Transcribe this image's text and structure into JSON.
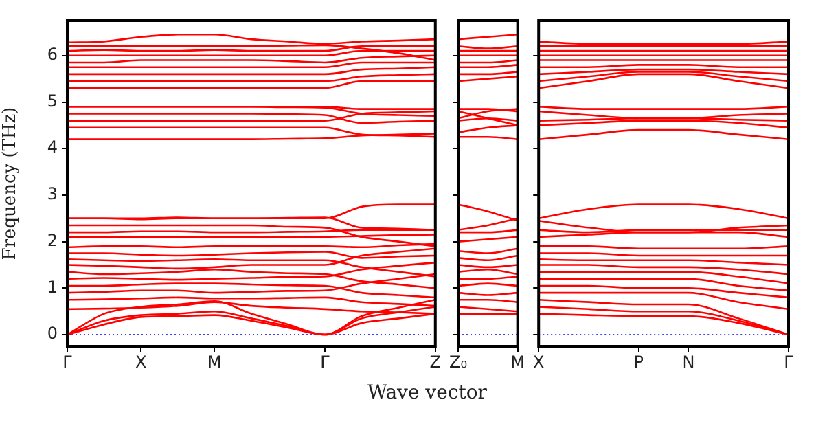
{
  "chart_data": [
    {
      "type": "line",
      "color": "#ff0000",
      "ylabel": "Frequency (THz)",
      "categories": [
        "Γ",
        null,
        "X",
        null,
        "M",
        null,
        null,
        "Γ",
        null,
        null,
        "Z"
      ],
      "ylim": [
        -0.25,
        6.75
      ],
      "yticks": [
        0,
        1,
        2,
        3,
        4,
        5,
        6
      ],
      "ref_lines": [
        {
          "axis": "y",
          "value": 0,
          "color": "#0000ff",
          "line_style": "dotted"
        }
      ],
      "series": [
        {
          "values": [
            0,
            0.22,
            0.38,
            0.4,
            0.42,
            0.3,
            0.15,
            0,
            0.25,
            0.35,
            0.45
          ]
        },
        {
          "values": [
            0,
            0.3,
            0.42,
            0.45,
            0.5,
            0.35,
            0.18,
            0,
            0.35,
            0.48,
            0.6
          ]
        },
        {
          "values": [
            0,
            0.45,
            0.6,
            0.65,
            0.72,
            0.45,
            0.22,
            0,
            0.4,
            0.58,
            0.75
          ]
        },
        {
          "values": [
            0.55,
            0.56,
            0.58,
            0.62,
            0.7,
            0.62,
            0.58,
            0.55,
            0.5,
            0.48,
            0.45
          ]
        },
        {
          "values": [
            0.75,
            0.76,
            0.78,
            0.8,
            0.78,
            0.78,
            0.79,
            0.8,
            0.7,
            0.66,
            0.62
          ]
        },
        {
          "values": [
            0.9,
            0.92,
            0.95,
            0.95,
            0.9,
            0.92,
            0.94,
            0.95,
            1.1,
            1.2,
            1.3
          ]
        },
        {
          "values": [
            1.05,
            1.05,
            1.08,
            1.1,
            1.1,
            1.08,
            1.06,
            1.05,
            0.9,
            0.85,
            0.8
          ]
        },
        {
          "values": [
            1.2,
            1.22,
            1.2,
            1.18,
            1.2,
            1.22,
            1.24,
            1.25,
            1.4,
            1.48,
            1.55
          ]
        },
        {
          "values": [
            1.35,
            1.3,
            1.32,
            1.35,
            1.4,
            1.35,
            1.32,
            1.3,
            1.15,
            1.08,
            1.0
          ]
        },
        {
          "values": [
            1.5,
            1.48,
            1.45,
            1.42,
            1.45,
            1.5,
            1.5,
            1.5,
            1.7,
            1.78,
            1.85
          ]
        },
        {
          "values": [
            1.62,
            1.6,
            1.58,
            1.6,
            1.62,
            1.6,
            1.6,
            1.6,
            1.45,
            1.35,
            1.25
          ]
        },
        {
          "values": [
            1.75,
            1.75,
            1.72,
            1.7,
            1.72,
            1.75,
            1.77,
            1.78,
            1.65,
            1.68,
            1.7
          ]
        },
        {
          "values": [
            1.88,
            1.9,
            1.9,
            1.88,
            1.9,
            1.9,
            1.9,
            1.9,
            1.88,
            1.92,
            1.95
          ]
        },
        {
          "values": [
            2.1,
            2.1,
            2.1,
            2.1,
            2.1,
            2.1,
            2.1,
            2.1,
            2.12,
            2.14,
            2.15
          ]
        },
        {
          "values": [
            2.2,
            2.2,
            2.22,
            2.22,
            2.2,
            2.2,
            2.21,
            2.22,
            2.25,
            2.25,
            2.25
          ]
        },
        {
          "values": [
            2.35,
            2.35,
            2.35,
            2.35,
            2.35,
            2.35,
            2.32,
            2.3,
            2.1,
            2.0,
            1.9
          ]
        },
        {
          "values": [
            2.5,
            2.5,
            2.48,
            2.5,
            2.5,
            2.5,
            2.5,
            2.5,
            2.75,
            2.8,
            2.8
          ]
        },
        {
          "values": [
            2.5,
            2.5,
            2.5,
            2.52,
            2.5,
            2.5,
            2.51,
            2.52,
            2.3,
            2.28,
            2.25
          ]
        },
        {
          "values": [
            4.2,
            4.2,
            4.2,
            4.2,
            4.2,
            4.2,
            4.21,
            4.22,
            4.28,
            4.3,
            4.32
          ]
        },
        {
          "values": [
            4.45,
            4.45,
            4.45,
            4.45,
            4.45,
            4.45,
            4.45,
            4.45,
            4.3,
            4.28,
            4.25
          ]
        },
        {
          "values": [
            4.6,
            4.6,
            4.6,
            4.6,
            4.6,
            4.6,
            4.6,
            4.6,
            4.75,
            4.78,
            4.8
          ]
        },
        {
          "values": [
            4.75,
            4.75,
            4.75,
            4.75,
            4.75,
            4.75,
            4.74,
            4.72,
            4.55,
            4.58,
            4.6
          ]
        },
        {
          "values": [
            4.9,
            4.9,
            4.9,
            4.9,
            4.9,
            4.9,
            4.89,
            4.88,
            4.75,
            4.72,
            4.7
          ]
        },
        {
          "values": [
            4.9,
            4.9,
            4.9,
            4.9,
            4.9,
            4.9,
            4.9,
            4.9,
            4.85,
            4.85,
            4.85
          ]
        },
        {
          "values": [
            5.3,
            5.3,
            5.3,
            5.3,
            5.3,
            5.3,
            5.3,
            5.3,
            5.45,
            5.45,
            5.45
          ]
        },
        {
          "values": [
            5.45,
            5.45,
            5.45,
            5.45,
            5.45,
            5.45,
            5.45,
            5.45,
            5.55,
            5.58,
            5.6
          ]
        },
        {
          "values": [
            5.6,
            5.6,
            5.6,
            5.6,
            5.6,
            5.6,
            5.6,
            5.6,
            5.7,
            5.72,
            5.75
          ]
        },
        {
          "values": [
            5.75,
            5.75,
            5.75,
            5.75,
            5.75,
            5.75,
            5.75,
            5.75,
            5.85,
            5.85,
            5.85
          ]
        },
        {
          "values": [
            5.85,
            5.85,
            5.9,
            5.9,
            5.9,
            5.9,
            5.88,
            5.85,
            5.95,
            5.98,
            6.0
          ]
        },
        {
          "values": [
            6.0,
            6.0,
            6.0,
            6.0,
            6.0,
            6.0,
            6.0,
            6.0,
            6.1,
            6.1,
            6.1
          ]
        },
        {
          "values": [
            6.1,
            6.12,
            6.1,
            6.1,
            6.12,
            6.1,
            6.1,
            6.1,
            6.2,
            6.2,
            6.2
          ]
        },
        {
          "values": [
            6.2,
            6.2,
            6.2,
            6.2,
            6.2,
            6.2,
            6.21,
            6.22,
            6.15,
            6.05,
            5.9
          ]
        },
        {
          "values": [
            6.28,
            6.3,
            6.4,
            6.45,
            6.45,
            6.35,
            6.3,
            6.25,
            6.3,
            6.32,
            6.35
          ]
        }
      ]
    },
    {
      "type": "line",
      "color": "#ff0000",
      "xlabel": "Wave vector",
      "tick_labels": "x",
      "categories": [
        "Z₀",
        null,
        "M"
      ],
      "ylim": [
        -0.25,
        6.75
      ],
      "yticks": [
        0,
        1,
        2,
        3,
        4,
        5,
        6
      ],
      "ref_lines": [
        {
          "axis": "y",
          "value": 0,
          "color": "#0000ff",
          "line_style": "dotted"
        }
      ],
      "series": [
        {
          "values": [
            0.45,
            0.45,
            0.45
          ]
        },
        {
          "values": [
            0.6,
            0.55,
            0.5
          ]
        },
        {
          "values": [
            0.75,
            0.75,
            0.7
          ]
        },
        {
          "values": [
            0.9,
            0.85,
            0.9
          ]
        },
        {
          "values": [
            1.05,
            1.1,
            1.05
          ]
        },
        {
          "values": [
            1.2,
            1.2,
            1.25
          ]
        },
        {
          "values": [
            1.35,
            1.4,
            1.3
          ]
        },
        {
          "values": [
            1.5,
            1.45,
            1.5
          ]
        },
        {
          "values": [
            1.65,
            1.6,
            1.7
          ]
        },
        {
          "values": [
            1.8,
            1.75,
            1.85
          ]
        },
        {
          "values": [
            2.0,
            2.05,
            2.1
          ]
        },
        {
          "values": [
            2.2,
            2.2,
            2.25
          ]
        },
        {
          "values": [
            2.25,
            2.35,
            2.5
          ]
        },
        {
          "values": [
            2.8,
            2.65,
            2.45
          ]
        },
        {
          "values": [
            4.25,
            4.25,
            4.2
          ]
        },
        {
          "values": [
            4.35,
            4.45,
            4.5
          ]
        },
        {
          "values": [
            4.6,
            4.65,
            4.6
          ]
        },
        {
          "values": [
            4.8,
            4.65,
            4.5
          ]
        },
        {
          "values": [
            4.65,
            4.8,
            4.85
          ]
        },
        {
          "values": [
            4.85,
            4.85,
            4.8
          ]
        },
        {
          "values": [
            5.45,
            5.5,
            5.55
          ]
        },
        {
          "values": [
            5.6,
            5.6,
            5.65
          ]
        },
        {
          "values": [
            5.75,
            5.75,
            5.8
          ]
        },
        {
          "values": [
            5.85,
            5.85,
            5.9
          ]
        },
        {
          "values": [
            6.0,
            6.0,
            6.0
          ]
        },
        {
          "values": [
            6.1,
            6.1,
            6.1
          ]
        },
        {
          "values": [
            6.2,
            6.15,
            6.2
          ]
        },
        {
          "values": [
            6.35,
            6.4,
            6.45
          ]
        }
      ]
    },
    {
      "type": "line",
      "color": "#ff0000",
      "tick_labels": "x",
      "categories": [
        "X",
        null,
        "P",
        "N",
        null,
        "Γ"
      ],
      "ylim": [
        -0.25,
        6.75
      ],
      "yticks": [
        0,
        1,
        2,
        3,
        4,
        5,
        6
      ],
      "ref_lines": [
        {
          "axis": "y",
          "value": 0,
          "color": "#0000ff",
          "line_style": "dotted"
        }
      ],
      "series": [
        {
          "values": [
            0.45,
            0.42,
            0.4,
            0.4,
            0.25,
            0
          ]
        },
        {
          "values": [
            0.6,
            0.55,
            0.5,
            0.5,
            0.3,
            0
          ]
        },
        {
          "values": [
            0.75,
            0.7,
            0.65,
            0.65,
            0.35,
            0
          ]
        },
        {
          "values": [
            0.9,
            0.9,
            0.9,
            0.9,
            0.7,
            0.55
          ]
        },
        {
          "values": [
            1.05,
            1.05,
            1.0,
            1.0,
            0.9,
            0.8
          ]
        },
        {
          "values": [
            1.2,
            1.2,
            1.2,
            1.2,
            1.05,
            0.95
          ]
        },
        {
          "values": [
            1.35,
            1.35,
            1.35,
            1.35,
            1.25,
            1.1
          ]
        },
        {
          "values": [
            1.5,
            1.5,
            1.45,
            1.45,
            1.4,
            1.3
          ]
        },
        {
          "values": [
            1.62,
            1.6,
            1.6,
            1.6,
            1.55,
            1.5
          ]
        },
        {
          "values": [
            1.75,
            1.75,
            1.7,
            1.7,
            1.7,
            1.7
          ]
        },
        {
          "values": [
            1.9,
            1.9,
            1.85,
            1.85,
            1.85,
            1.9
          ]
        },
        {
          "values": [
            2.1,
            2.15,
            2.2,
            2.2,
            2.2,
            2.1
          ]
        },
        {
          "values": [
            2.25,
            2.2,
            2.25,
            2.25,
            2.25,
            2.25
          ]
        },
        {
          "values": [
            2.5,
            2.7,
            2.8,
            2.8,
            2.7,
            2.5
          ]
        },
        {
          "values": [
            2.45,
            2.3,
            2.2,
            2.2,
            2.3,
            2.35
          ]
        },
        {
          "values": [
            4.2,
            4.3,
            4.4,
            4.4,
            4.3,
            4.2
          ]
        },
        {
          "values": [
            4.5,
            4.55,
            4.6,
            4.6,
            4.55,
            4.45
          ]
        },
        {
          "values": [
            4.6,
            4.62,
            4.65,
            4.65,
            4.62,
            4.6
          ]
        },
        {
          "values": [
            4.8,
            4.72,
            4.65,
            4.65,
            4.72,
            4.75
          ]
        },
        {
          "values": [
            4.9,
            4.85,
            4.85,
            4.85,
            4.85,
            4.9
          ]
        },
        {
          "values": [
            5.3,
            5.45,
            5.6,
            5.6,
            5.45,
            5.3
          ]
        },
        {
          "values": [
            5.45,
            5.55,
            5.65,
            5.65,
            5.55,
            5.45
          ]
        },
        {
          "values": [
            5.6,
            5.65,
            5.7,
            5.7,
            5.65,
            5.6
          ]
        },
        {
          "values": [
            5.75,
            5.75,
            5.8,
            5.8,
            5.75,
            5.75
          ]
        },
        {
          "values": [
            5.9,
            5.9,
            5.9,
            5.9,
            5.9,
            5.9
          ]
        },
        {
          "values": [
            6.0,
            6.0,
            6.0,
            6.0,
            6.0,
            6.0
          ]
        },
        {
          "values": [
            6.1,
            6.1,
            6.1,
            6.1,
            6.1,
            6.1
          ]
        },
        {
          "values": [
            6.2,
            6.2,
            6.2,
            6.2,
            6.2,
            6.2
          ]
        },
        {
          "values": [
            6.3,
            6.25,
            6.25,
            6.25,
            6.25,
            6.3
          ]
        }
      ]
    }
  ]
}
